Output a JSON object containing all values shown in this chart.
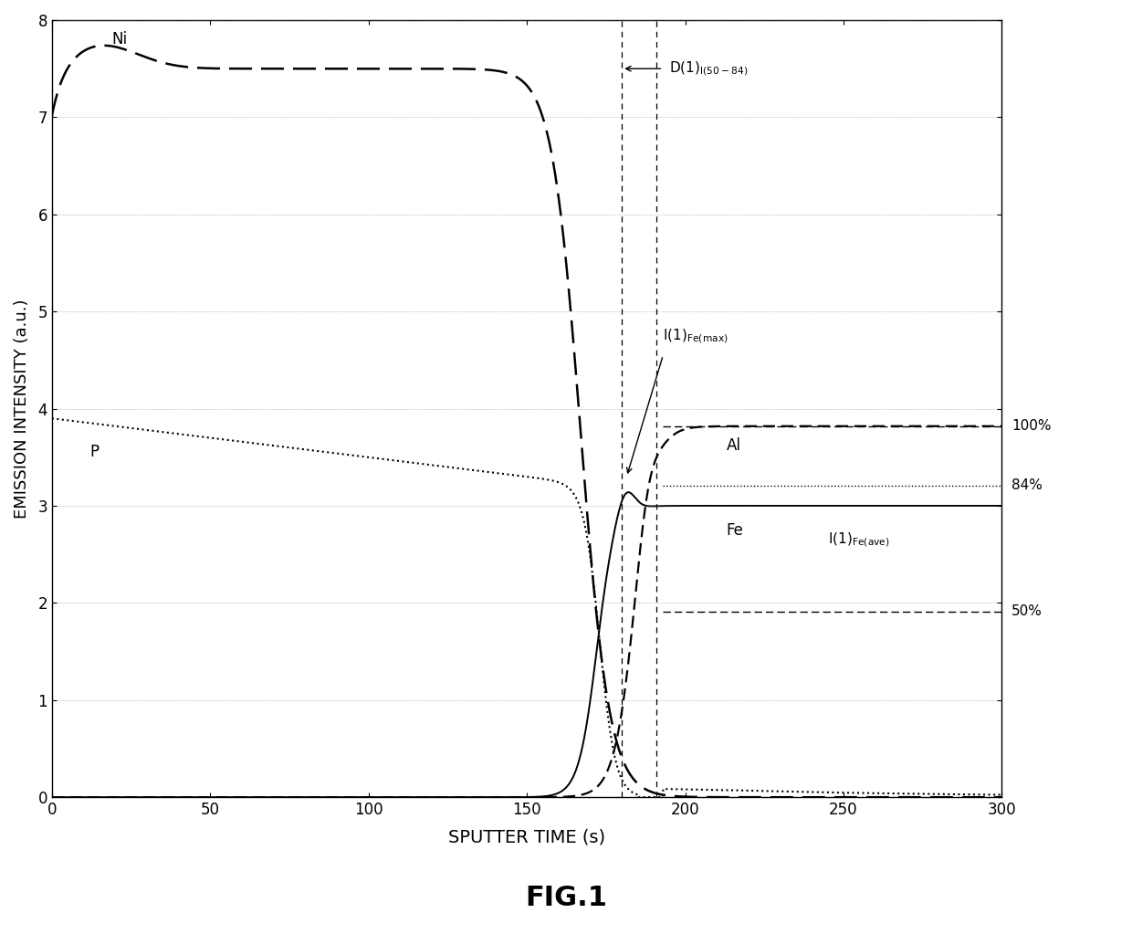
{
  "title": "FIG.1",
  "xlabel": "SPUTTER TIME (s)",
  "ylabel": "EMISSION INTENSITY (a.u.)",
  "xlim": [
    0,
    300
  ],
  "ylim": [
    0,
    8
  ],
  "yticks": [
    0,
    1,
    2,
    3,
    4,
    5,
    6,
    7,
    8
  ],
  "xticks": [
    0,
    50,
    100,
    150,
    200,
    250,
    300
  ],
  "vline1": 180,
  "vline2": 191,
  "hline_100pct": 3.82,
  "hline_84pct": 3.21,
  "hline_50pct": 1.91,
  "background_color": "#ffffff"
}
